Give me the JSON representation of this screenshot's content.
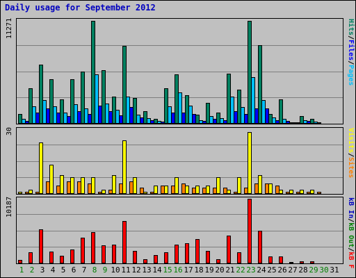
{
  "chart_data": {
    "type": "bar",
    "title": "Daily usage for September 2012",
    "categories": [
      "1",
      "2",
      "3",
      "4",
      "5",
      "6",
      "7",
      "8",
      "9",
      "10",
      "11",
      "12",
      "13",
      "14",
      "15",
      "16",
      "17",
      "18",
      "19",
      "20",
      "21",
      "22",
      "23",
      "24",
      "25",
      "26",
      "27",
      "28",
      "29",
      "30",
      "31"
    ],
    "weekend_days": [
      "1",
      "2",
      "8",
      "9",
      "15",
      "16",
      "22",
      "23",
      "29",
      "30"
    ],
    "colors": {
      "hits": "#008060",
      "files": "#00c0ff",
      "pages": "#0000ff",
      "visits": "#ffff00",
      "sites": "#ff8000",
      "kbin": "#008000",
      "kbout": "#0000c0",
      "kbf": "#ff0000"
    },
    "panels": [
      {
        "name": "hits_files_pages",
        "ymax": 11271,
        "ymax_label": "11271",
        "labels": [
          {
            "text": "Pages",
            "color": "#00c0ff"
          },
          {
            "text": "/",
            "color": "#000000"
          },
          {
            "text": "Files",
            "color": "#0000ff"
          },
          {
            "text": "/",
            "color": "#000000"
          },
          {
            "text": "Hits",
            "color": "#008060"
          }
        ],
        "series": [
          {
            "name": "Hits",
            "color": "#008060",
            "values": [
              1100,
              3900,
              6500,
              4900,
              2700,
              4900,
              5700,
              11271,
              5900,
              3000,
              8500,
              2800,
              1400,
              500,
              3900,
              5400,
              3100,
              1000,
              2300,
              1200,
              5500,
              3700,
              11271,
              8600,
              1100,
              2700,
              100,
              800,
              500,
              null,
              null
            ]
          },
          {
            "name": "Files",
            "color": "#00c0ff",
            "values": [
              500,
              1900,
              2600,
              1900,
              1200,
              2100,
              1700,
              5400,
              2200,
              1500,
              3000,
              1000,
              600,
              300,
              1900,
              3400,
              2000,
              400,
              800,
              600,
              3000,
              1800,
              5100,
              2600,
              700,
              500,
              50,
              400,
              200,
              null,
              null
            ]
          },
          {
            "name": "Pages",
            "color": "#0000ff",
            "values": [
              300,
              1200,
              1700,
              1200,
              800,
              1400,
              1100,
              2000,
              1400,
              900,
              1800,
              700,
              400,
              200,
              1200,
              1200,
              1100,
              300,
              500,
              400,
              1400,
              1100,
              1700,
              1700,
              400,
              300,
              40,
              300,
              150,
              null,
              null
            ]
          }
        ]
      },
      {
        "name": "visits_sites",
        "ymax": 30,
        "ymax_label": "30",
        "labels": [
          {
            "text": "Sites",
            "color": "#ff8000"
          },
          {
            "text": "/",
            "color": "#000000"
          },
          {
            "text": "Visits",
            "color": "#ffff00"
          }
        ],
        "series": [
          {
            "name": "Visits",
            "color": "#ffff00",
            "values": [
              1,
              2,
              25,
              14,
              9,
              8,
              8,
              8,
              2,
              9,
              26,
              8,
              1,
              4,
              4,
              8,
              4,
              4,
              4,
              8,
              2,
              8,
              30,
              9,
              5,
              2,
              2,
              2,
              2,
              null,
              null
            ]
          },
          {
            "name": "Sites",
            "color": "#ff8000",
            "values": [
              1,
              1,
              6,
              4,
              6,
              6,
              5,
              1,
              2,
              5,
              6,
              3,
              1,
              4,
              4,
              5,
              3,
              3,
              3,
              3,
              1,
              3,
              5,
              5,
              4,
              1,
              1,
              1,
              1,
              null,
              null
            ]
          }
        ]
      },
      {
        "name": "kb",
        "ymax": 10187,
        "ymax_label": "10187",
        "labels": [
          {
            "text": "kB F",
            "color": "#ff0000"
          },
          {
            "text": "/",
            "color": "#000000"
          },
          {
            "text": "kB Out",
            "color": "#008000"
          },
          {
            "text": "/",
            "color": "#000000"
          },
          {
            "text": "kB In",
            "color": "#0000c0"
          }
        ],
        "series": [
          {
            "name": "kB F",
            "color": "#ff0000",
            "values": [
              600,
              1800,
              5400,
              1900,
              1200,
              2200,
              4100,
              4900,
              2900,
              3000,
              6700,
              2000,
              700,
              1300,
              1800,
              3000,
              3200,
              3800,
              2000,
              700,
              4400,
              1800,
              10187,
              5200,
              1100,
              1100,
              100,
              300,
              300,
              null,
              null
            ]
          }
        ]
      }
    ]
  }
}
